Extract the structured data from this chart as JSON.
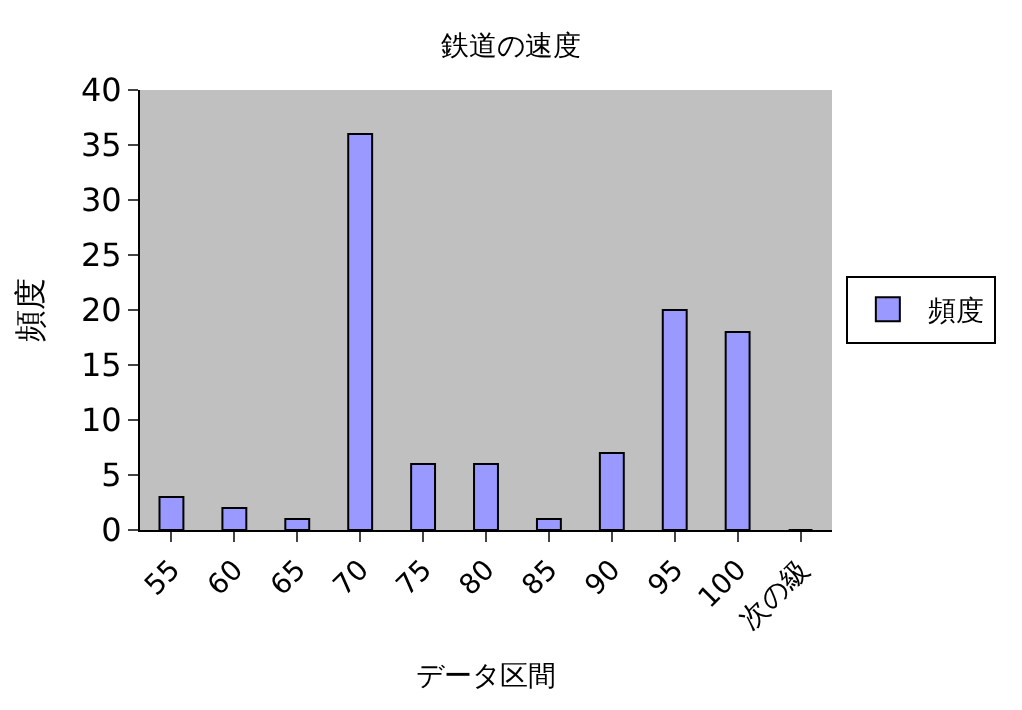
{
  "chart_data": {
    "type": "bar",
    "title": "鉄道の速度",
    "xlabel": "データ区間",
    "ylabel": "頻度",
    "categories": [
      "55",
      "60",
      "65",
      "70",
      "75",
      "80",
      "85",
      "90",
      "95",
      "100",
      "次の級"
    ],
    "series": [
      {
        "name": "頻度",
        "color": "#9999ff",
        "values": [
          3,
          2,
          1,
          36,
          6,
          6,
          1,
          7,
          20,
          18,
          0
        ]
      }
    ],
    "ylim": [
      0,
      40
    ],
    "yticks": [
      0,
      5,
      10,
      15,
      20,
      25,
      30,
      35,
      40
    ],
    "grid": false,
    "legend": "right"
  }
}
